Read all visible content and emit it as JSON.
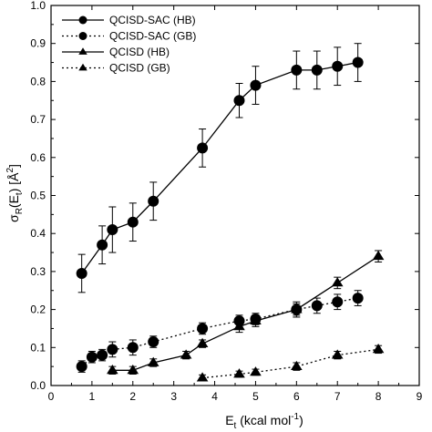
{
  "chart_data": {
    "type": "line",
    "title": "",
    "xlabel": {
      "main": "E",
      "sub": "t",
      "rest": " (kcal mol",
      "sup": "-1",
      "end": ")"
    },
    "ylabel": {
      "main": "σ",
      "sub1": "R",
      "mid": "(E",
      "sub2": "t",
      "rest": ") [Å",
      "sup": "2",
      "end": "]"
    },
    "xlim": [
      0,
      9
    ],
    "ylim": [
      0,
      1.0
    ],
    "xticks": [
      "0",
      "1",
      "2",
      "3",
      "4",
      "5",
      "6",
      "7",
      "8",
      "9"
    ],
    "yticks": [
      "0.0",
      "0.1",
      "0.2",
      "0.3",
      "0.4",
      "0.5",
      "0.6",
      "0.7",
      "0.8",
      "0.9",
      "1.0"
    ],
    "grid": false,
    "legend_position": "top-left",
    "series": [
      {
        "name": "QCISD-SAC (HB)",
        "marker": "circle",
        "line": "solid",
        "x": [
          0.75,
          1.25,
          1.5,
          2.0,
          2.5,
          3.7,
          4.6,
          5.0,
          6.0,
          6.5,
          7.0,
          7.5
        ],
        "y": [
          0.295,
          0.37,
          0.41,
          0.43,
          0.485,
          0.625,
          0.75,
          0.79,
          0.83,
          0.83,
          0.84,
          0.85
        ],
        "err": [
          0.05,
          0.05,
          0.06,
          0.05,
          0.05,
          0.05,
          0.045,
          0.05,
          0.05,
          0.05,
          0.05,
          0.05
        ]
      },
      {
        "name": "QCISD-SAC (GB)",
        "marker": "circle",
        "line": "dotted",
        "x": [
          0.75,
          1.0,
          1.25,
          1.5,
          2.0,
          2.5,
          3.7,
          4.6,
          5.0,
          6.0,
          6.5,
          7.0,
          7.5
        ],
        "y": [
          0.05,
          0.075,
          0.08,
          0.095,
          0.1,
          0.115,
          0.15,
          0.17,
          0.175,
          0.2,
          0.21,
          0.22,
          0.23
        ],
        "err": [
          0.015,
          0.015,
          0.015,
          0.02,
          0.02,
          0.015,
          0.015,
          0.015,
          0.015,
          0.02,
          0.02,
          0.02,
          0.02
        ]
      },
      {
        "name": "QCISD (HB)",
        "marker": "triangle",
        "line": "solid",
        "x": [
          1.5,
          2.0,
          2.5,
          3.3,
          3.7,
          4.6,
          5.0,
          6.0,
          7.0,
          8.0
        ],
        "y": [
          0.04,
          0.04,
          0.06,
          0.08,
          0.11,
          0.155,
          0.17,
          0.2,
          0.27,
          0.34
        ],
        "err": [
          0.01,
          0.01,
          0.01,
          0.01,
          0.01,
          0.015,
          0.015,
          0.015,
          0.015,
          0.015
        ]
      },
      {
        "name": "QCISD (GB)",
        "marker": "triangle",
        "line": "dotted",
        "x": [
          3.7,
          4.6,
          5.0,
          6.0,
          7.0,
          8.0
        ],
        "y": [
          0.02,
          0.03,
          0.035,
          0.05,
          0.08,
          0.095
        ],
        "err": [
          0.008,
          0.008,
          0.008,
          0.01,
          0.01,
          0.01
        ]
      }
    ]
  }
}
